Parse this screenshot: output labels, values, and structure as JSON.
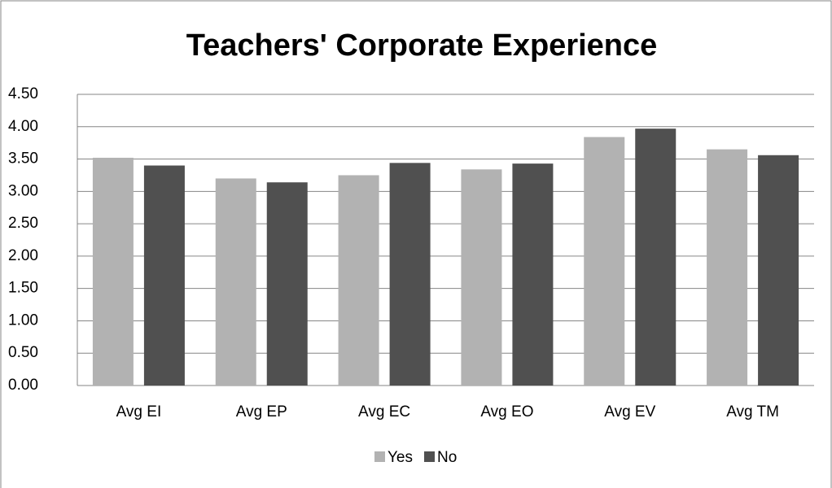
{
  "chart_data": {
    "type": "bar",
    "title": "Teachers' Corporate Experience",
    "categories": [
      "Avg EI",
      "Avg EP",
      "Avg EC",
      "Avg EO",
      "Avg EV",
      "Avg TM"
    ],
    "series": [
      {
        "name": "Yes",
        "color": "#b2b2b2",
        "values": [
          3.52,
          3.2,
          3.25,
          3.34,
          3.84,
          3.65
        ]
      },
      {
        "name": "No",
        "color": "#505050",
        "values": [
          3.4,
          3.14,
          3.44,
          3.43,
          3.97,
          3.56
        ]
      }
    ],
    "ylim": [
      0,
      4.5
    ],
    "yticks": [
      {
        "value": 0,
        "label": "0.00"
      },
      {
        "value": 0.5,
        "label": "0.50"
      },
      {
        "value": 1,
        "label": "1.00"
      },
      {
        "value": 1.5,
        "label": "1.50"
      },
      {
        "value": 2,
        "label": "2.00"
      },
      {
        "value": 2.5,
        "label": "2.50"
      },
      {
        "value": 3,
        "label": "3.00"
      },
      {
        "value": 3.5,
        "label": "3.50"
      },
      {
        "value": 4,
        "label": "4.00"
      },
      {
        "value": 4.5,
        "label": "4.50"
      }
    ],
    "grid": true,
    "legend": "bottom"
  }
}
